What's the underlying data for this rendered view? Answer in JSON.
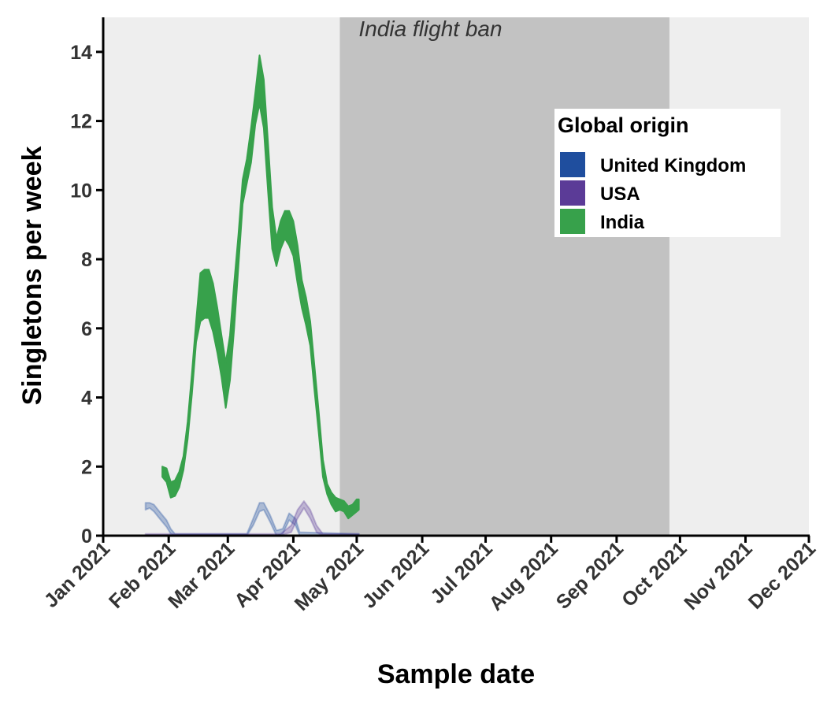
{
  "chart_data": {
    "type": "area",
    "title": "",
    "xlabel": "Sample date",
    "ylabel": "Singletons per week",
    "xlim": [
      "2021-01-01",
      "2021-12-01"
    ],
    "ylim": [
      0,
      15
    ],
    "x_ticks": [
      "2021-01-01",
      "2021-02-01",
      "2021-03-01",
      "2021-04-01",
      "2021-05-01",
      "2021-06-01",
      "2021-07-01",
      "2021-08-01",
      "2021-09-01",
      "2021-10-01",
      "2021-11-01",
      "2021-12-01"
    ],
    "x_tick_labels": [
      "Jan 2021",
      "Feb 2021",
      "Mar 2021",
      "Apr 2021",
      "May 2021",
      "Jun 2021",
      "Jul 2021",
      "Aug 2021",
      "Sep 2021",
      "Oct 2021",
      "Nov 2021",
      "Dec 2021"
    ],
    "y_ticks": [
      0,
      2,
      4,
      6,
      8,
      10,
      12,
      14
    ],
    "y_tick_labels": [
      "0",
      "2",
      "4",
      "6",
      "8",
      "10",
      "12",
      "14"
    ],
    "grid": false,
    "background_color": "#eeeeee",
    "shaded_period": {
      "start": "2021-04-23",
      "end": "2021-09-26",
      "label": "India flight ban",
      "color": "#c2c2c2"
    },
    "legend": {
      "title": "Global origin",
      "position": "top-right",
      "entries": [
        {
          "label": "United Kingdom",
          "color": "#1f4e9e"
        },
        {
          "label": "USA",
          "color": "#5b3b97"
        },
        {
          "label": "India",
          "color": "#37a14b"
        }
      ]
    },
    "series": [
      {
        "name": "India",
        "color": "#37a14b",
        "opacity": 1.0,
        "points": [
          [
            "2021-01-29",
            1.7,
            2.0
          ],
          [
            "2021-01-31",
            1.55,
            1.95
          ],
          [
            "2021-02-02",
            1.1,
            1.55
          ],
          [
            "2021-02-04",
            1.15,
            1.6
          ],
          [
            "2021-02-06",
            1.4,
            1.85
          ],
          [
            "2021-02-08",
            1.9,
            2.3
          ],
          [
            "2021-02-10",
            2.8,
            3.3
          ],
          [
            "2021-02-12",
            4.1,
            4.7
          ],
          [
            "2021-02-14",
            5.6,
            6.2
          ],
          [
            "2021-02-16",
            6.2,
            7.6
          ],
          [
            "2021-02-18",
            6.3,
            7.7
          ],
          [
            "2021-02-20",
            6.3,
            7.7
          ],
          [
            "2021-02-22",
            5.9,
            7.3
          ],
          [
            "2021-02-24",
            5.3,
            6.6
          ],
          [
            "2021-02-26",
            4.6,
            5.8
          ],
          [
            "2021-02-28",
            3.7,
            5.0
          ],
          [
            "2021-03-02",
            4.5,
            5.8
          ],
          [
            "2021-03-04",
            6.0,
            7.3
          ],
          [
            "2021-03-06",
            7.8,
            8.7
          ],
          [
            "2021-03-08",
            9.6,
            10.3
          ],
          [
            "2021-03-10",
            10.2,
            10.9
          ],
          [
            "2021-03-12",
            10.8,
            11.8
          ],
          [
            "2021-03-14",
            11.9,
            12.8
          ],
          [
            "2021-03-16",
            12.5,
            13.9
          ],
          [
            "2021-03-18",
            11.8,
            13.2
          ],
          [
            "2021-03-20",
            10.0,
            11.4
          ],
          [
            "2021-03-22",
            8.3,
            9.5
          ],
          [
            "2021-03-24",
            7.8,
            8.6
          ],
          [
            "2021-03-26",
            8.3,
            9.1
          ],
          [
            "2021-03-28",
            8.6,
            9.4
          ],
          [
            "2021-03-30",
            8.4,
            9.4
          ],
          [
            "2021-04-01",
            8.1,
            9.1
          ],
          [
            "2021-04-03",
            7.3,
            8.4
          ],
          [
            "2021-04-05",
            6.6,
            7.4
          ],
          [
            "2021-04-07",
            6.1,
            6.9
          ],
          [
            "2021-04-09",
            5.5,
            6.2
          ],
          [
            "2021-04-11",
            4.2,
            4.9
          ],
          [
            "2021-04-13",
            3.0,
            3.6
          ],
          [
            "2021-04-15",
            1.7,
            2.2
          ],
          [
            "2021-04-17",
            1.2,
            1.5
          ],
          [
            "2021-04-19",
            0.9,
            1.25
          ],
          [
            "2021-04-21",
            0.7,
            1.1
          ],
          [
            "2021-04-23",
            0.75,
            1.05
          ],
          [
            "2021-04-25",
            0.7,
            1.0
          ],
          [
            "2021-04-27",
            0.5,
            0.85
          ],
          [
            "2021-04-29",
            0.6,
            0.9
          ],
          [
            "2021-05-01",
            0.7,
            1.05
          ],
          [
            "2021-05-02",
            0.75,
            1.05
          ]
        ]
      },
      {
        "name": "United Kingdom",
        "color": "#1f4e9e",
        "opacity": 0.32,
        "points": [
          [
            "2021-01-21",
            0.75,
            0.95
          ],
          [
            "2021-01-23",
            0.8,
            0.95
          ],
          [
            "2021-01-25",
            0.7,
            0.9
          ],
          [
            "2021-01-27",
            0.55,
            0.75
          ],
          [
            "2021-01-29",
            0.4,
            0.6
          ],
          [
            "2021-01-31",
            0.25,
            0.45
          ],
          [
            "2021-02-02",
            0.05,
            0.2
          ],
          [
            "2021-02-04",
            0.0,
            0.05
          ],
          [
            "2021-03-10",
            0.0,
            0.05
          ],
          [
            "2021-03-13",
            0.3,
            0.5
          ],
          [
            "2021-03-16",
            0.7,
            0.95
          ],
          [
            "2021-03-18",
            0.75,
            0.95
          ],
          [
            "2021-03-21",
            0.4,
            0.6
          ],
          [
            "2021-03-24",
            0.0,
            0.15
          ],
          [
            "2021-03-27",
            0.05,
            0.2
          ],
          [
            "2021-03-30",
            0.45,
            0.65
          ],
          [
            "2021-04-02",
            0.3,
            0.5
          ],
          [
            "2021-04-04",
            0.0,
            0.1
          ],
          [
            "2021-05-02",
            0.0,
            0.05
          ]
        ]
      },
      {
        "name": "USA",
        "color": "#5b3b97",
        "opacity": 0.32,
        "points": [
          [
            "2021-01-21",
            0.0,
            0.05
          ],
          [
            "2021-03-26",
            0.0,
            0.05
          ],
          [
            "2021-03-31",
            0.1,
            0.3
          ],
          [
            "2021-04-03",
            0.5,
            0.75
          ],
          [
            "2021-04-06",
            0.8,
            1.0
          ],
          [
            "2021-04-09",
            0.5,
            0.75
          ],
          [
            "2021-04-12",
            0.1,
            0.3
          ],
          [
            "2021-04-15",
            0.0,
            0.05
          ],
          [
            "2021-05-02",
            0.0,
            0.05
          ]
        ]
      }
    ]
  }
}
